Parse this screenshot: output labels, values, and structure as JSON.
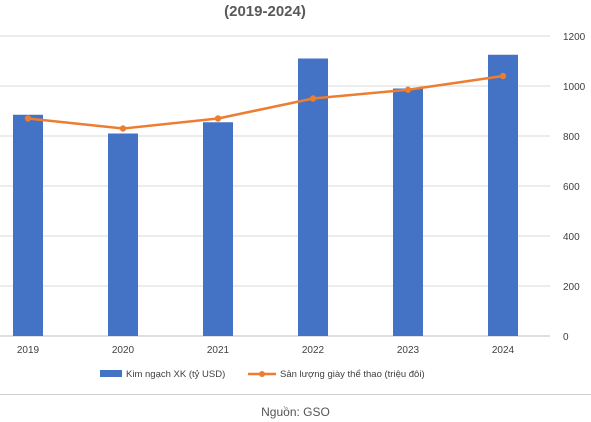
{
  "chart_data": {
    "type": "bar",
    "title": "(2019-2024)",
    "categories": [
      "2019",
      "2020",
      "2021",
      "2022",
      "2023",
      "2024"
    ],
    "series": [
      {
        "name": "Kim ngạch XK (tỷ USD)",
        "type": "bar",
        "values": [
          29.5,
          27.0,
          28.5,
          37.0,
          33.0,
          37.5
        ],
        "color": "#4472C4"
      },
      {
        "name": "Sản lượng giày thể thao (triệu đôi)",
        "type": "line",
        "values": [
          870,
          830,
          870,
          950,
          985,
          1040
        ],
        "color": "#ED7D31"
      }
    ],
    "y_right": {
      "ylim": [
        0,
        1200
      ],
      "ticks": [
        "0",
        "200",
        "400",
        "600",
        "800",
        "1000",
        "1200"
      ]
    },
    "y_left": {
      "ylim": [
        0,
        40
      ]
    },
    "grid": true,
    "legend": "bottom"
  },
  "source_note": "Nguồn: GSO"
}
